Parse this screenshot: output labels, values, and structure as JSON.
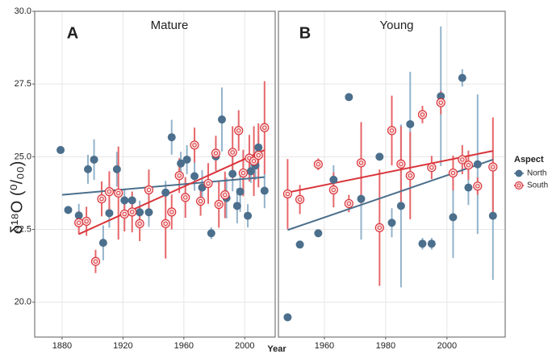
{
  "chart_data": [
    {
      "type": "scatter",
      "panel_label": "A",
      "title": "Mature",
      "x_label": "Year",
      "y_label": "δ¹⁸O (⁰/₀₀)",
      "legend_title": "Aspect",
      "legend": "right",
      "grid": true,
      "xlim": [
        1862,
        2020
      ],
      "xticks": [
        1880,
        1920,
        1960,
        2000
      ],
      "ylim": [
        18.8,
        30
      ],
      "yticks": [
        {
          "value": 20,
          "label": "20.0"
        },
        22.5,
        {
          "value": 25,
          "label": "25.0"
        },
        27.5,
        {
          "value": 30,
          "label": "30.0"
        }
      ],
      "series": [
        {
          "name": "North",
          "color": "#4b6f8c",
          "error_color": "#93b3cb",
          "marker": "filled",
          "x": [
            1879,
            1884,
            1891,
            1897,
            1901,
            1907,
            1911,
            1916,
            1921,
            1926,
            1931,
            1937,
            1948,
            1952,
            1958,
            1962,
            1967,
            1972,
            1978,
            1981,
            1985,
            1988,
            1992,
            1995,
            1997,
            2002,
            2004,
            2007,
            2009,
            2013
          ],
          "values": [
            25.23,
            23.17,
            22.98,
            24.57,
            24.9,
            22.04,
            23.06,
            24.57,
            23.5,
            23.5,
            23.09,
            23.09,
            23.77,
            25.67,
            24.77,
            24.9,
            24.33,
            23.94,
            22.37,
            25.01,
            26.28,
            23.58,
            24.41,
            23.31,
            23.8,
            22.97,
            24.5,
            24.7,
            25.32,
            23.83
          ],
          "errors": [
            0.1,
            0.1,
            0.4,
            0.5,
            0.7,
            0.6,
            0.5,
            0.6,
            0.4,
            0.3,
            0.4,
            0.5,
            0.4,
            0.6,
            0.4,
            0.5,
            0.5,
            0.6,
            0.2,
            0.5,
            1.1,
            0.7,
            0.6,
            0.6,
            0.7,
            0.4,
            0.4,
            0.5,
            0.4,
            0.6
          ],
          "trend": {
            "x": [
              1880,
              2013
            ],
            "values": [
              23.69,
              24.3
            ]
          }
        },
        {
          "name": "South",
          "color": "#d9353b",
          "error_color": "#e7666a",
          "marker": "ring",
          "x": [
            1891,
            1896,
            1902,
            1906,
            1911,
            1917,
            1921,
            1926,
            1931,
            1937,
            1948,
            1952,
            1957,
            1961,
            1967,
            1971,
            1976,
            1981,
            1983,
            1987,
            1992,
            1996,
            1999,
            2003,
            2006,
            2009,
            2013
          ],
          "values": [
            22.73,
            22.78,
            21.4,
            23.55,
            23.8,
            23.75,
            23.03,
            23.1,
            22.7,
            23.86,
            22.7,
            23.1,
            24.35,
            23.6,
            25.4,
            23.47,
            24.08,
            25.12,
            23.36,
            23.69,
            25.15,
            25.9,
            24.44,
            24.95,
            24.85,
            25.05,
            26.0
          ],
          "errors": [
            0.4,
            0.5,
            0.4,
            0.6,
            0.7,
            1.6,
            0.6,
            0.7,
            0.6,
            0.7,
            1.2,
            0.6,
            0.6,
            0.7,
            0.6,
            0.5,
            0.7,
            0.6,
            0.8,
            0.8,
            0.9,
            0.7,
            0.8,
            0.8,
            1.2,
            1.1,
            1.6
          ],
          "trend": {
            "x": [
              1891,
              2013
            ],
            "values": [
              22.34,
              25.23
            ]
          }
        }
      ]
    },
    {
      "type": "scatter",
      "panel_label": "B",
      "title": "Young",
      "grid": true,
      "xlim": [
        1945,
        2019
      ],
      "xticks": [
        1960,
        1980,
        2000
      ],
      "ylim": [
        18.8,
        30
      ],
      "yticks": [
        20,
        22.5,
        25,
        27.5,
        30
      ],
      "series": [
        {
          "name": "North",
          "color": "#4b6f8c",
          "error_color": "#93b3cb",
          "marker": "filled",
          "x": [
            1948,
            1952,
            1958,
            1963,
            1968,
            1972,
            1978,
            1982,
            1985,
            1988,
            1992,
            1995,
            1998,
            2002,
            2005,
            2007,
            2010,
            2015
          ],
          "values": [
            19.48,
            21.98,
            22.37,
            24.21,
            27.05,
            23.55,
            25.0,
            22.73,
            23.31,
            26.12,
            22.01,
            22.01,
            27.08,
            22.92,
            27.71,
            23.94,
            24.74,
            22.97
          ],
          "errors": [
            0.1,
            0.1,
            0.1,
            0.5,
            0.1,
            1.4,
            0.1,
            0.5,
            2.8,
            1.8,
            0.2,
            0.2,
            2.4,
            1.4,
            0.3,
            0.6,
            2.4,
            2.2
          ],
          "trend": {
            "x": [
              1948,
              2015
            ],
            "values": [
              22.48,
              24.9
            ]
          }
        },
        {
          "name": "South",
          "color": "#d9353b",
          "error_color": "#e7666a",
          "marker": "ring",
          "x": [
            1948,
            1952,
            1958,
            1963,
            1968,
            1972,
            1978,
            1982,
            1985,
            1988,
            1992,
            1995,
            1998,
            2002,
            2005,
            2007,
            2010,
            2015
          ],
          "values": [
            23.72,
            23.53,
            24.74,
            23.86,
            23.39,
            24.79,
            22.56,
            25.9,
            24.75,
            24.35,
            26.45,
            24.63,
            26.86,
            24.44,
            24.9,
            24.71,
            23.99,
            24.65
          ],
          "errors": [
            1.2,
            0.5,
            0.2,
            0.6,
            0.3,
            1.4,
            2.0,
            1.2,
            1.3,
            1.5,
            0.3,
            0.4,
            0.4,
            0.6,
            0.5,
            0.5,
            0.3,
            1.7
          ],
          "trend": {
            "x": [
              1948,
              2015
            ],
            "values": [
              23.77,
              25.2
            ]
          }
        }
      ]
    }
  ]
}
